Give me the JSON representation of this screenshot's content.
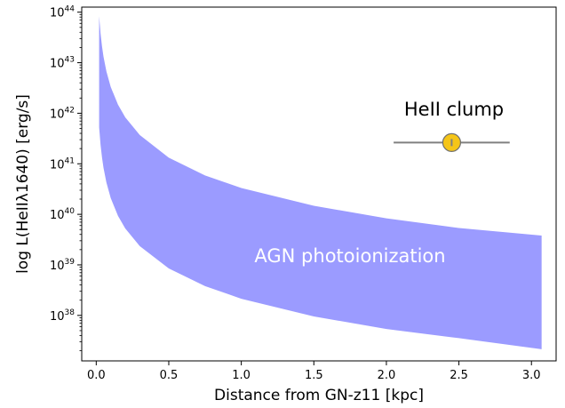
{
  "chart_data": {
    "type": "area",
    "title": "",
    "xlabel": "Distance from GN-z11 [kpc]",
    "ylabel": "log L(HeIIλ1640) [erg/s]",
    "xlim": [
      -0.1,
      3.17
    ],
    "ylim_log10": [
      37.1,
      44.1
    ],
    "y_scale": "log",
    "x_ticks": [
      {
        "value": 0.0,
        "label": "0.0"
      },
      {
        "value": 0.5,
        "label": "0.5"
      },
      {
        "value": 1.0,
        "label": "1.0"
      },
      {
        "value": 1.5,
        "label": "1.5"
      },
      {
        "value": 2.0,
        "label": "2.0"
      },
      {
        "value": 2.5,
        "label": "2.5"
      },
      {
        "value": 3.0,
        "label": "3.0"
      }
    ],
    "y_ticks": [
      {
        "exp": 38,
        "base": "10",
        "sup": "38"
      },
      {
        "exp": 39,
        "base": "10",
        "sup": "39"
      },
      {
        "exp": 40,
        "base": "10",
        "sup": "40"
      },
      {
        "exp": 41,
        "base": "10",
        "sup": "41"
      },
      {
        "exp": 42,
        "base": "10",
        "sup": "42"
      },
      {
        "exp": 43,
        "base": "10",
        "sup": "43"
      },
      {
        "exp": 44,
        "base": "10",
        "sup": "44"
      }
    ],
    "band": {
      "label": "AGN photoionization",
      "color": "#9b9bff",
      "x": [
        0.02,
        0.03,
        0.04,
        0.05,
        0.07,
        0.1,
        0.15,
        0.2,
        0.3,
        0.5,
        0.75,
        1.0,
        1.5,
        2.0,
        2.5,
        3.07
      ],
      "upper_log10": [
        43.92,
        43.57,
        43.32,
        43.12,
        42.83,
        42.52,
        42.17,
        41.92,
        41.57,
        41.12,
        40.77,
        40.52,
        40.17,
        39.92,
        39.73,
        39.58
      ],
      "lower_log10": [
        41.72,
        41.37,
        41.12,
        40.92,
        40.63,
        40.32,
        39.97,
        39.72,
        39.37,
        38.93,
        38.58,
        38.33,
        37.98,
        37.73,
        37.55,
        37.33
      ]
    },
    "points": [
      {
        "label": "HeII clump",
        "x": 2.45,
        "y_log10": 41.42,
        "xerr": [
          0.4,
          0.4
        ],
        "yerr_log10": [
          0.07,
          0.07
        ],
        "marker_color": "#f5c518",
        "edge_color": "#707070",
        "errorbar_color": "#808080"
      }
    ],
    "grid": false,
    "legend": "none"
  }
}
